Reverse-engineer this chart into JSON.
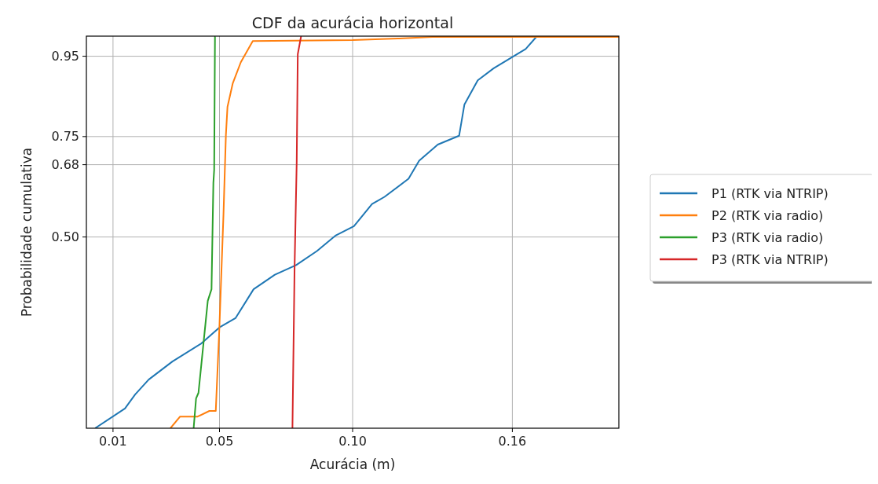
{
  "chart_data": {
    "type": "line",
    "title": "CDF da acurácia horizontal",
    "xlabel": "Acurácia (m)",
    "ylabel": "Probabilidade cumulativa",
    "xlim": [
      0,
      0.2
    ],
    "ylim": [
      0.024,
      1.0
    ],
    "xticks": [
      0.01,
      0.05,
      {
        "value": 0.1,
        "label": "0.10"
      },
      0.16
    ],
    "yticks": [
      {
        "value": 0.5,
        "label": "0.50"
      },
      0.68,
      0.75,
      0.95
    ],
    "grid": true,
    "legend": "right",
    "line_style": "solid",
    "marker": "none",
    "series": [
      {
        "name": "P1 (RTK via NTRIP)",
        "color": "#1f77b4",
        "x": [
          0.0035,
          0.0145,
          0.0183,
          0.0234,
          0.0323,
          0.0432,
          0.05,
          0.056,
          0.0628,
          0.0708,
          0.0788,
          0.0866,
          0.0937,
          0.1005,
          0.1073,
          0.112,
          0.121,
          0.125,
          0.132,
          0.14,
          0.142,
          0.147,
          0.153,
          0.1607,
          0.165,
          0.169,
          0.2
        ],
        "values": [
          0.025,
          0.073,
          0.108,
          0.145,
          0.19,
          0.235,
          0.275,
          0.298,
          0.37,
          0.406,
          0.43,
          0.465,
          0.504,
          0.527,
          0.582,
          0.6,
          0.645,
          0.69,
          0.73,
          0.752,
          0.83,
          0.89,
          0.92,
          0.951,
          0.968,
          0.998,
          0.998
        ]
      },
      {
        "name": "P2 (RTK via radio)",
        "color": "#ff7f0e",
        "x": [
          0.0317,
          0.0352,
          0.0418,
          0.0462,
          0.0486,
          0.05,
          0.0515,
          0.0524,
          0.053,
          0.055,
          0.058,
          0.0625,
          0.1,
          0.117,
          0.13,
          0.2
        ],
        "values": [
          0.025,
          0.053,
          0.053,
          0.067,
          0.067,
          0.282,
          0.557,
          0.753,
          0.824,
          0.883,
          0.935,
          0.988,
          0.99,
          0.994,
          0.998,
          0.998
        ]
      },
      {
        "name": "P3 (RTK via radio)",
        "color": "#2ca02c",
        "x": [
          0.0403,
          0.0412,
          0.0421,
          0.0441,
          0.0456,
          0.047,
          0.0477,
          0.048,
          0.0483
        ],
        "values": [
          0.025,
          0.098,
          0.112,
          0.243,
          0.341,
          0.37,
          0.635,
          0.667,
          0.998
        ]
      },
      {
        "name": "P3 (RTK via NTRIP)",
        "color": "#d62728",
        "x": [
          0.0774,
          0.0782,
          0.079,
          0.0794,
          0.0806
        ],
        "values": [
          0.025,
          0.425,
          0.686,
          0.955,
          0.998
        ]
      }
    ]
  }
}
